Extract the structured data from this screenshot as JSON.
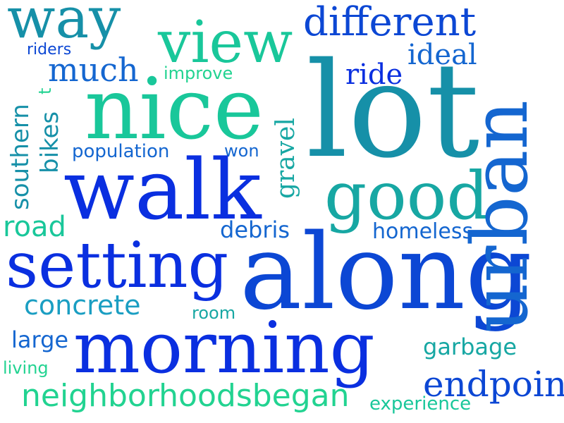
{
  "words": {
    "way": "way",
    "view": "view",
    "different": "different",
    "urban": "urban",
    "riders": "riders",
    "ideal": "ideal",
    "much": "much",
    "improve": "improve",
    "ride": "ride",
    "t": "t",
    "nice": "nice",
    "lot": "lot",
    "southern": "southern",
    "bikes": "bikes",
    "population": "population",
    "won": "won",
    "gravel": "gravel",
    "walk": "walk",
    "good": "good",
    "road": "road",
    "debris": "debris",
    "homeless": "homeless",
    "setting": "setting",
    "along": "along",
    "concrete": "concrete",
    "room": "room",
    "large": "large",
    "morning": "morning",
    "garbage": "garbage",
    "living": "living",
    "endpoint": "endpoint",
    "neighborhoodsbegan": "neighborhoodsbegan",
    "experience": "experience"
  },
  "colors": {
    "teal_dark": "#1690a8",
    "green": "#19c79a",
    "mint": "#22d391",
    "blue": "#0c47d4",
    "blue_mid": "#1466d0",
    "blue_deep": "#0a2fe0",
    "teal": "#17a7a3",
    "cyan": "#1a9ec2"
  }
}
